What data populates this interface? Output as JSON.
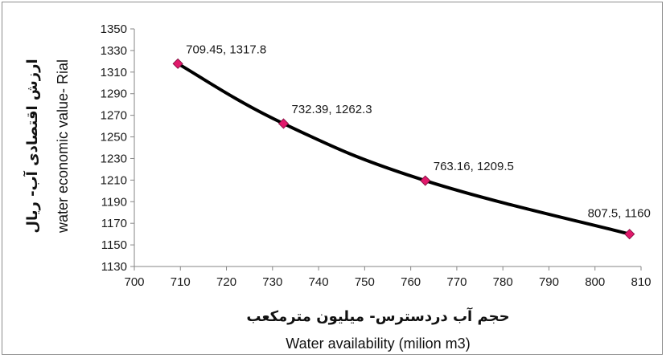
{
  "chart_data": {
    "type": "scatter",
    "title": "",
    "xlabel_fa": "حجم آب دردسترس- میلیون مترمکعب",
    "xlabel": "Water availability (milion m3)",
    "ylabel_fa": "ارزش اقتصادی آب- ریال",
    "ylabel": "water economic value- Rial",
    "xlim": [
      700,
      810
    ],
    "ylim": [
      1130,
      1350
    ],
    "x_ticks": [
      700,
      710,
      720,
      730,
      740,
      750,
      760,
      770,
      780,
      790,
      800,
      810
    ],
    "y_ticks": [
      1130,
      1150,
      1170,
      1190,
      1210,
      1230,
      1250,
      1270,
      1290,
      1310,
      1330,
      1350
    ],
    "grid": false,
    "line_style": "smoothed",
    "line_color": "#000000",
    "marker_color": "#e0196b",
    "series": [
      {
        "x": [
          709.45,
          732.39,
          763.16,
          807.5
        ],
        "y": [
          1317.8,
          1262.3,
          1209.5,
          1160
        ],
        "labels": [
          "709.45, 1317.8",
          "732.39, 1262.3",
          "763.16, 1209.5",
          "807.5, 1160"
        ]
      }
    ]
  }
}
